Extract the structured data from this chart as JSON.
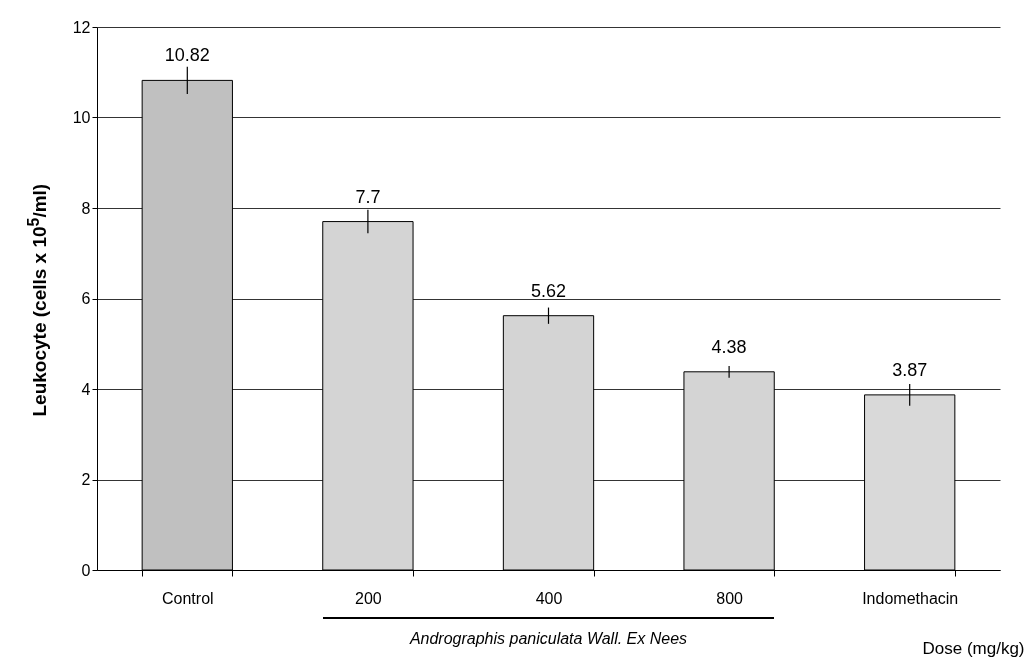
{
  "chart_data": {
    "type": "bar",
    "categories": [
      "Control",
      "200",
      "400",
      "800",
      "Indomethacin"
    ],
    "values": [
      10.82,
      7.7,
      5.62,
      4.38,
      3.87
    ],
    "errors": [
      0.3,
      0.26,
      0.18,
      0.13,
      0.24
    ],
    "colors": [
      "#c0c0c0",
      "#d4d4d4",
      "#d4d4d4",
      "#d4d4d4",
      "#d9d9d9"
    ],
    "ylabel": "Leukocyte (cells x 10$^{5}$/ml)",
    "xlabel": "Dose (mg/kg)",
    "annotations": [
      "Andrographis paniculata Wall. Ex Nees"
    ],
    "ylim": [
      0,
      12
    ],
    "yticks": [
      0,
      2,
      4,
      6,
      8,
      10,
      12
    ],
    "grid": "y",
    "data_labels": true
  }
}
